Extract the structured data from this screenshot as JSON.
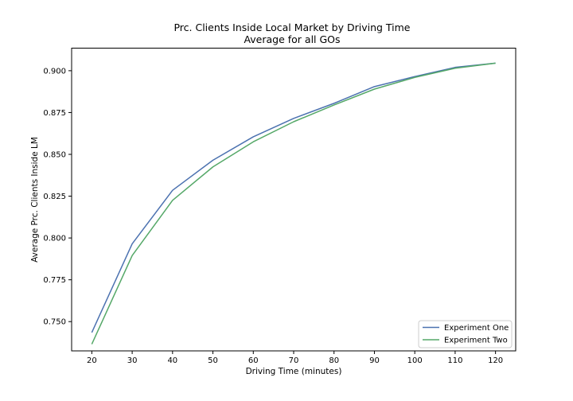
{
  "chart_data": {
    "type": "line",
    "title": "Prc. Clients Inside Local Market by Driving Time",
    "subtitle": "Average for all GOs",
    "xlabel": "Driving Time (minutes)",
    "ylabel": "Average Prc. Clients Inside LM",
    "x": [
      20,
      30,
      40,
      50,
      60,
      70,
      80,
      90,
      100,
      110,
      120
    ],
    "x_ticks": [
      "20",
      "30",
      "40",
      "50",
      "60",
      "70",
      "80",
      "90",
      "100",
      "110",
      "120"
    ],
    "y_ticks": [
      "0.750",
      "0.775",
      "0.800",
      "0.825",
      "0.850",
      "0.875",
      "0.900"
    ],
    "y_tick_values": [
      0.75,
      0.775,
      0.8,
      0.825,
      0.85,
      0.875,
      0.9
    ],
    "xlim": [
      15,
      125
    ],
    "ylim": [
      0.7325,
      0.9135
    ],
    "grid": false,
    "legend_position": "bottom-right",
    "series": [
      {
        "name": "Experiment One",
        "color": "#4c72b0",
        "values": [
          0.7435,
          0.7965,
          0.8285,
          0.8465,
          0.8605,
          0.8715,
          0.8805,
          0.8905,
          0.8965,
          0.902,
          0.9045
        ]
      },
      {
        "name": "Experiment Two",
        "color": "#55a868",
        "values": [
          0.7365,
          0.7895,
          0.8225,
          0.8425,
          0.8575,
          0.8695,
          0.8795,
          0.889,
          0.896,
          0.9015,
          0.9045
        ]
      }
    ]
  }
}
